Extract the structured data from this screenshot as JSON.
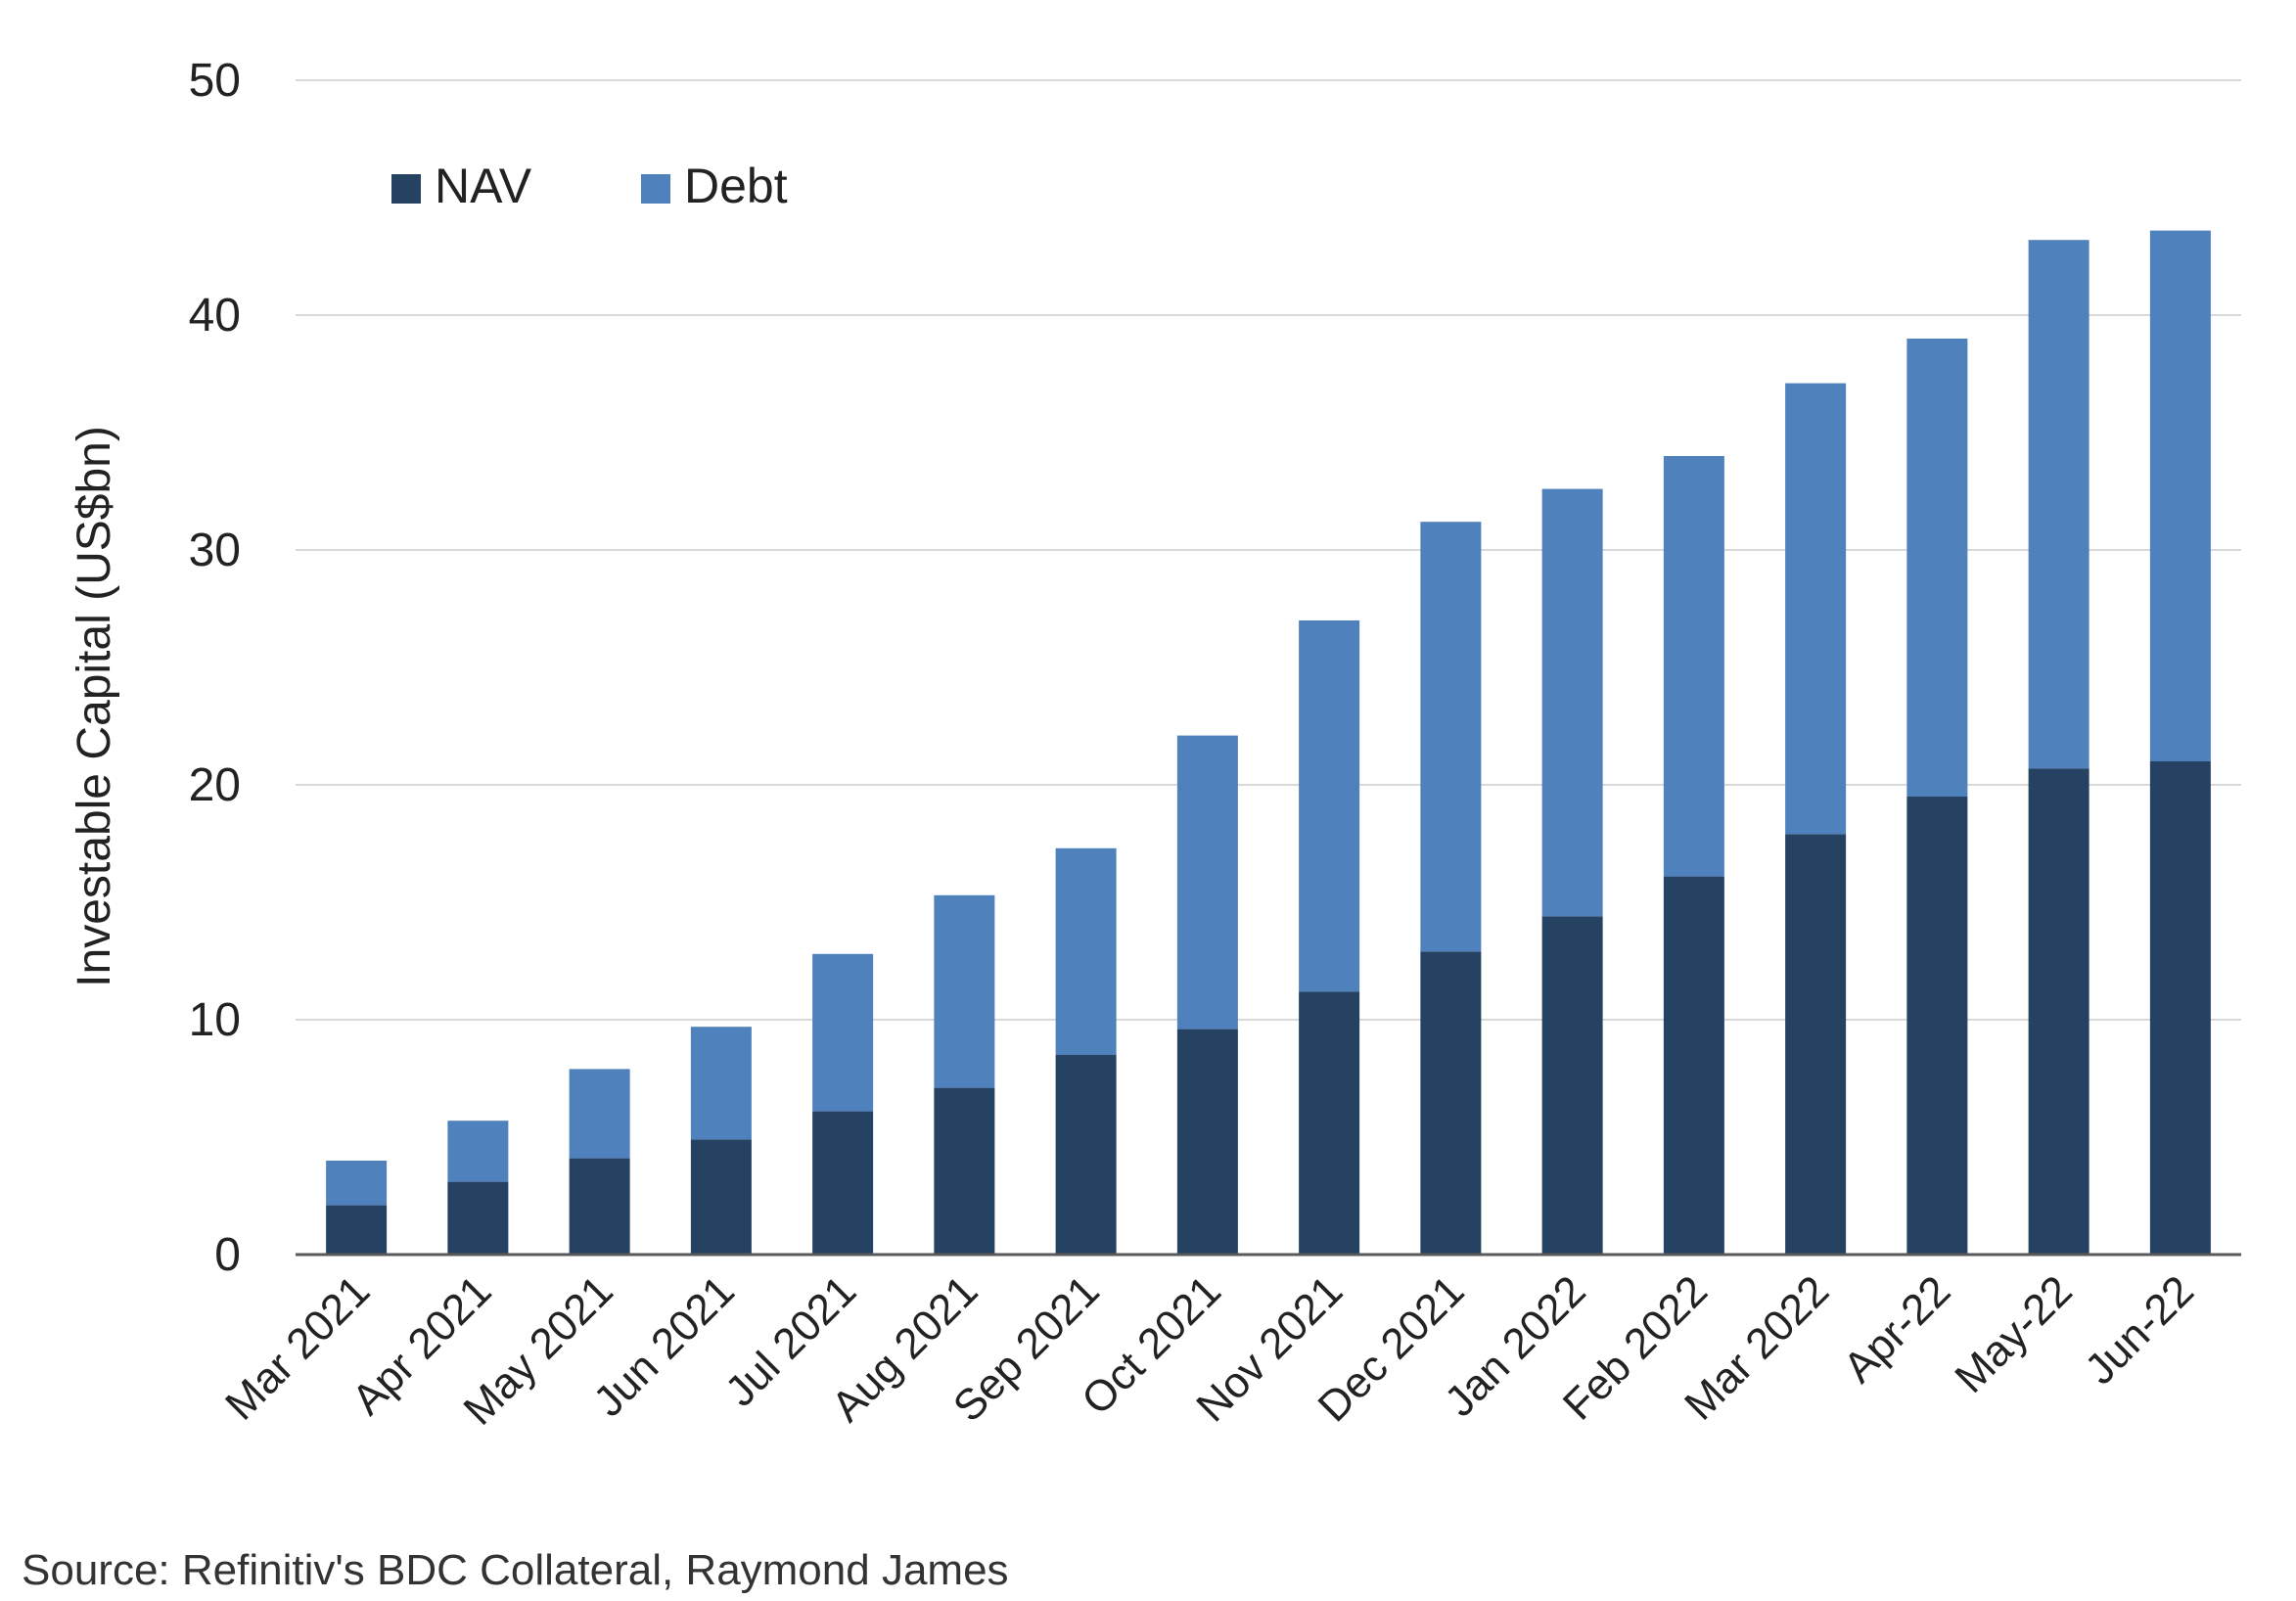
{
  "chart_data": {
    "type": "bar",
    "stacked": true,
    "ylabel": "Investable Capital (US$bn)",
    "ylim": [
      0,
      50
    ],
    "yticks": [
      0,
      10,
      20,
      30,
      40,
      50
    ],
    "grid": true,
    "legend_placement": "top-left",
    "categories": [
      "Mar 2021",
      "Apr 2021",
      "May 2021",
      "Jun 2021",
      "Jul 2021",
      "Aug 2021",
      "Sep 2021",
      "Oct 2021",
      "Nov 2021",
      "Dec 2021",
      "Jan 2022",
      "Feb 2022",
      "Mar 2022",
      "Apr-22",
      "May-22",
      "Jun-22"
    ],
    "series": [
      {
        "name": "NAV",
        "color": "#264263",
        "values": [
          2.1,
          3.1,
          4.1,
          4.9,
          6.1,
          7.1,
          8.5,
          9.6,
          11.2,
          12.9,
          14.4,
          16.1,
          17.9,
          19.5,
          20.7,
          21.0
        ]
      },
      {
        "name": "Debt",
        "color": "#4f81bd",
        "values": [
          1.9,
          2.6,
          3.8,
          4.8,
          6.7,
          8.2,
          8.8,
          12.5,
          15.8,
          18.3,
          18.2,
          17.9,
          19.2,
          19.5,
          22.5,
          22.6
        ]
      }
    ],
    "source": "Source: Refinitiv's BDC Collateral, Raymond James"
  }
}
